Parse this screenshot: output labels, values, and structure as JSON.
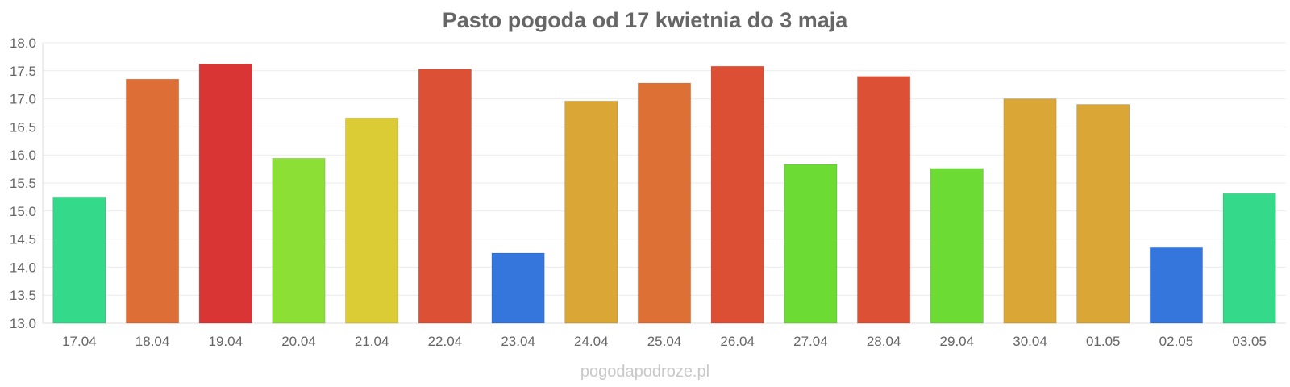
{
  "chart_data": {
    "type": "bar",
    "title": "Pasto pogoda od 17 kwietnia do 3 maja",
    "xlabel": "",
    "ylabel": "",
    "ylim": [
      13.0,
      18.0
    ],
    "yticks": [
      "13.0",
      "13.5",
      "14.0",
      "14.5",
      "15.0",
      "15.5",
      "16.0",
      "16.5",
      "17.0",
      "17.5",
      "18.0"
    ],
    "grid": true,
    "legend": "none",
    "categories": [
      "17.04",
      "18.04",
      "19.04",
      "20.04",
      "21.04",
      "22.04",
      "23.04",
      "24.04",
      "25.04",
      "26.04",
      "27.04",
      "28.04",
      "29.04",
      "30.04",
      "01.05",
      "02.05",
      "03.05"
    ],
    "values": [
      15.25,
      17.35,
      17.62,
      15.94,
      16.66,
      17.53,
      14.25,
      16.96,
      17.28,
      17.58,
      15.83,
      17.4,
      15.76,
      17.0,
      16.9,
      14.36,
      15.31
    ],
    "colors": [
      "#34d98a",
      "#dd6e35",
      "#d93535",
      "#8cdf35",
      "#dbcb35",
      "#dc5035",
      "#3476db",
      "#daa635",
      "#dc7035",
      "#dc4f35",
      "#6cdc35",
      "#dc5035",
      "#6cdc35",
      "#daa635",
      "#daa635",
      "#3476db",
      "#34d98a"
    ]
  },
  "watermark": "pogodapodroze.pl"
}
